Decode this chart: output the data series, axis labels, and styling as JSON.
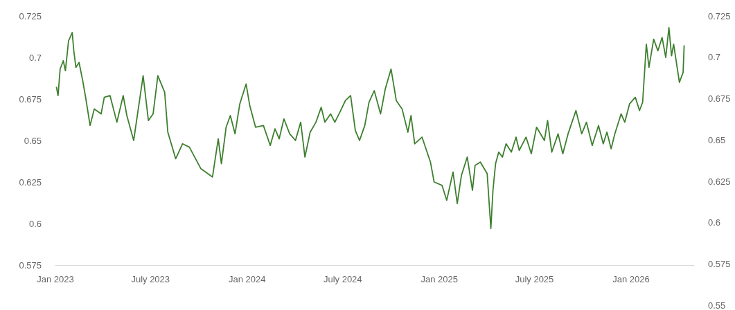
{
  "chart_data": {
    "type": "line",
    "x": [
      "2023-01-03",
      "2023-01-06",
      "2023-01-10",
      "2023-01-16",
      "2023-01-20",
      "2023-01-26",
      "2023-02-02",
      "2023-02-05",
      "2023-02-09",
      "2023-02-15",
      "2023-02-22",
      "2023-02-28",
      "2023-03-08",
      "2023-03-16",
      "2023-03-29",
      "2023-04-04",
      "2023-04-15",
      "2023-04-28",
      "2023-05-10",
      "2023-05-17",
      "2023-05-30",
      "2023-06-17",
      "2023-06-27",
      "2023-07-06",
      "2023-07-15",
      "2023-07-28",
      "2023-08-03",
      "2023-08-18",
      "2023-08-31",
      "2023-09-13",
      "2023-10-05",
      "2023-10-27",
      "2023-11-07",
      "2023-11-13",
      "2023-11-22",
      "2023-11-30",
      "2023-12-09",
      "2023-12-18",
      "2023-12-30",
      "2024-01-06",
      "2024-01-17",
      "2024-02-01",
      "2024-02-14",
      "2024-02-23",
      "2024-03-02",
      "2024-03-11",
      "2024-03-22",
      "2024-04-02",
      "2024-04-12",
      "2024-04-20",
      "2024-04-30",
      "2024-05-11",
      "2024-05-21",
      "2024-05-28",
      "2024-06-08",
      "2024-06-16",
      "2024-06-27",
      "2024-07-06",
      "2024-07-16",
      "2024-07-25",
      "2024-08-02",
      "2024-08-12",
      "2024-08-20",
      "2024-08-30",
      "2024-09-11",
      "2024-09-20",
      "2024-10-01",
      "2024-10-11",
      "2024-10-22",
      "2024-11-02",
      "2024-11-08",
      "2024-11-15",
      "2024-11-29",
      "2024-12-15",
      "2024-12-22",
      "2025-01-06",
      "2025-01-15",
      "2025-01-27",
      "2025-02-04",
      "2025-02-12",
      "2025-02-23",
      "2025-03-05",
      "2025-03-10",
      "2025-03-20",
      "2025-04-02",
      "2025-04-09",
      "2025-04-13",
      "2025-04-18",
      "2025-04-24",
      "2025-05-01",
      "2025-05-08",
      "2025-05-18",
      "2025-05-27",
      "2025-06-02",
      "2025-06-15",
      "2025-06-25",
      "2025-07-05",
      "2025-07-20",
      "2025-07-26",
      "2025-08-03",
      "2025-08-15",
      "2025-08-24",
      "2025-09-03",
      "2025-09-18",
      "2025-09-29",
      "2025-10-08",
      "2025-10-19",
      "2025-10-31",
      "2025-11-09",
      "2025-11-16",
      "2025-11-24",
      "2025-12-01",
      "2025-12-13",
      "2025-12-20",
      "2025-12-29",
      "2026-01-09",
      "2026-01-17",
      "2026-01-23",
      "2026-01-30",
      "2026-02-04",
      "2026-02-13",
      "2026-02-21",
      "2026-03-01",
      "2026-03-08",
      "2026-03-14",
      "2026-03-19",
      "2026-03-23",
      "2026-04-03",
      "2026-04-10",
      "2026-04-12"
    ],
    "series": [
      {
        "color": "#3d7f2e",
        "values": [
          0.682,
          0.677,
          0.693,
          0.698,
          0.692,
          0.71,
          0.715,
          0.704,
          0.694,
          0.697,
          0.686,
          0.675,
          0.659,
          0.669,
          0.666,
          0.676,
          0.677,
          0.661,
          0.677,
          0.665,
          0.65,
          0.689,
          0.662,
          0.666,
          0.689,
          0.679,
          0.655,
          0.639,
          0.648,
          0.646,
          0.633,
          0.628,
          0.651,
          0.636,
          0.658,
          0.665,
          0.654,
          0.672,
          0.684,
          0.671,
          0.658,
          0.659,
          0.647,
          0.657,
          0.651,
          0.663,
          0.654,
          0.65,
          0.661,
          0.64,
          0.655,
          0.661,
          0.67,
          0.661,
          0.666,
          0.661,
          0.668,
          0.674,
          0.677,
          0.656,
          0.65,
          0.659,
          0.673,
          0.68,
          0.666,
          0.681,
          0.693,
          0.674,
          0.669,
          0.655,
          0.665,
          0.648,
          0.652,
          0.637,
          0.625,
          0.623,
          0.614,
          0.631,
          0.612,
          0.629,
          0.64,
          0.62,
          0.635,
          0.637,
          0.63,
          0.597,
          0.62,
          0.636,
          0.643,
          0.64,
          0.648,
          0.643,
          0.652,
          0.644,
          0.652,
          0.642,
          0.658,
          0.65,
          0.662,
          0.643,
          0.654,
          0.642,
          0.654,
          0.668,
          0.654,
          0.661,
          0.647,
          0.659,
          0.648,
          0.655,
          0.645,
          0.654,
          0.666,
          0.661,
          0.672,
          0.676,
          0.668,
          0.673,
          0.708,
          0.694,
          0.711,
          0.704,
          0.712,
          0.7,
          0.718,
          0.701,
          0.708,
          0.685,
          0.691,
          0.707
        ]
      }
    ],
    "xlim": [
      "2023-01-01",
      "2026-05-01"
    ],
    "xticks": [
      {
        "value": "2023-01-01",
        "label": "Jan 2023"
      },
      {
        "value": "2023-07-01",
        "label": "July 2023"
      },
      {
        "value": "2024-01-01",
        "label": "Jan 2024"
      },
      {
        "value": "2024-07-01",
        "label": "July 2024"
      },
      {
        "value": "2025-01-01",
        "label": "Jan 2025"
      },
      {
        "value": "2025-07-01",
        "label": "July 2025"
      },
      {
        "value": "2026-01-01",
        "label": "Jan 2026"
      }
    ],
    "ylim": [
      0.575,
      0.725
    ],
    "yticks": [
      0.575,
      0.6,
      0.625,
      0.65,
      0.675,
      0.7,
      0.725
    ],
    "y2lim": [
      0.55,
      0.725
    ],
    "y2ticks": [
      0.55,
      0.575,
      0.6,
      0.625,
      0.65,
      0.675,
      0.7,
      0.725
    ],
    "grid": false,
    "marker": "none",
    "line_style": "solid"
  }
}
